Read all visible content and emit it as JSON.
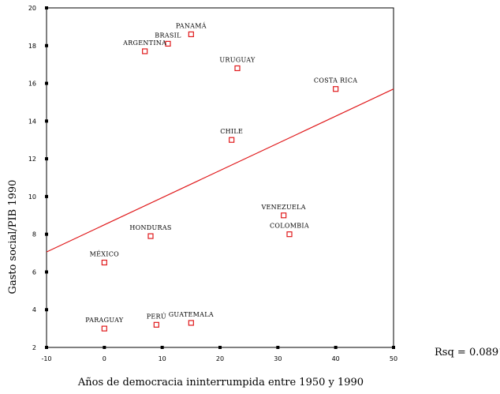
{
  "chart_data": {
    "type": "scatter",
    "title": "",
    "xlabel": "Años de democracia ininterrumpida entre 1950 y 1990",
    "ylabel": "Gasto social/PIB 1990",
    "xlim": [
      -10,
      50
    ],
    "ylim": [
      2,
      20
    ],
    "xticks": [
      -10,
      0,
      10,
      20,
      30,
      40,
      50
    ],
    "yticks": [
      2,
      4,
      6,
      8,
      10,
      12,
      14,
      16,
      18,
      20
    ],
    "grid": false,
    "marker_color": "#e0191b",
    "fit_line_color": "#e0191b",
    "points": [
      {
        "label": "PANAMÁ",
        "x": 15,
        "y": 18.6
      },
      {
        "label": "BRASIL",
        "x": 11,
        "y": 18.1
      },
      {
        "label": "ARGENTINA",
        "x": 7,
        "y": 17.7
      },
      {
        "label": "URUGUAY",
        "x": 23,
        "y": 16.8
      },
      {
        "label": "COSTA RICA",
        "x": 40,
        "y": 15.7
      },
      {
        "label": "CHILE",
        "x": 22,
        "y": 13.0
      },
      {
        "label": "VENEZUELA",
        "x": 31,
        "y": 9.0
      },
      {
        "label": "COLOMBIA",
        "x": 32,
        "y": 8.0
      },
      {
        "label": "HONDURAS",
        "x": 8,
        "y": 7.9
      },
      {
        "label": "MÉXICO",
        "x": 0,
        "y": 6.5
      },
      {
        "label": "PARAGUAY",
        "x": 0,
        "y": 3.0
      },
      {
        "label": "PERÚ",
        "x": 9,
        "y": 3.2
      },
      {
        "label": "GUATEMALA",
        "x": 15,
        "y": 3.3
      }
    ],
    "fit_line": {
      "intercept": 8.5,
      "slope": 0.144
    },
    "rsq_label": "Rsq = 0.0891"
  }
}
